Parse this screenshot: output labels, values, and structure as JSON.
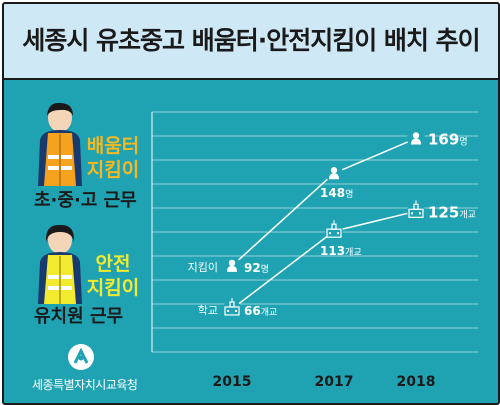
{
  "title": "세종시 유초중고 배움터·안전지킴이 배치 추이",
  "roles": [
    {
      "label_line1": "배움터",
      "label_line2": "지킴이",
      "group": "초·중·고 근무",
      "color": "#f5b820"
    },
    {
      "label_line1": "안전",
      "label_line2": "지킴이",
      "group": "유치원 근무",
      "color": "#f2ea2e"
    }
  ],
  "organization": "세종특별자치시교육청",
  "colors": {
    "background": "#1fa3b3",
    "header": "#cfe8f6",
    "line": "#ffffff",
    "grid": "#8fd0d8"
  },
  "chart_data": {
    "type": "line",
    "categories": [
      "2015",
      "2017",
      "2018"
    ],
    "series": [
      {
        "name": "지킴이",
        "values": [
          92,
          148,
          169
        ],
        "labels": [
          "92명",
          "148명",
          "169명"
        ],
        "icon": "person-icon"
      },
      {
        "name": "학교",
        "values": [
          66,
          113,
          125
        ],
        "labels": [
          "66개교",
          "113개교",
          "125개교"
        ],
        "icon": "school-icon"
      }
    ],
    "grid": true
  }
}
